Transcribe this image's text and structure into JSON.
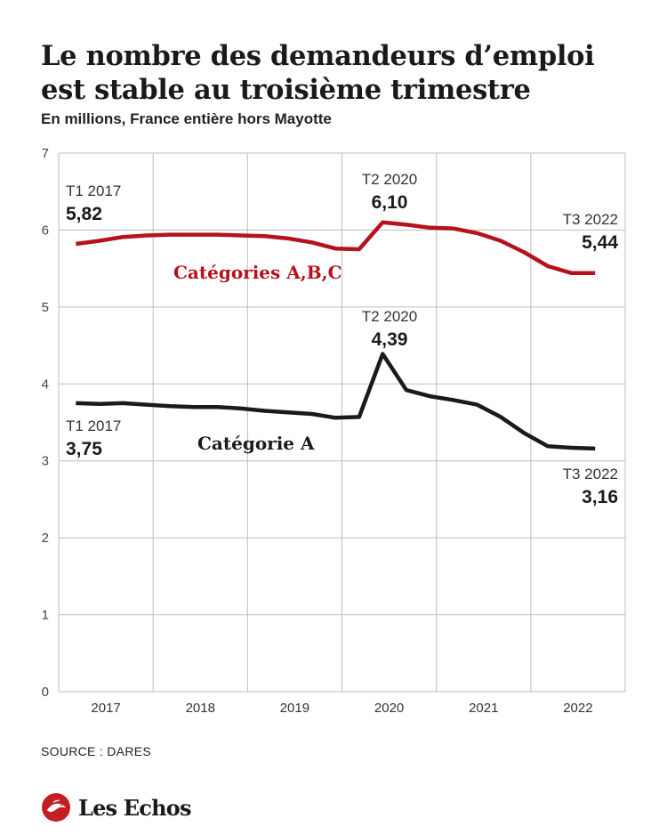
{
  "header": {
    "title_line1": "Le nombre des demandeurs d’emploi",
    "title_line2": "est stable au troisième trimestre",
    "subtitle": "En millions, France entière hors Mayotte"
  },
  "footer": {
    "source": "SOURCE : DARES",
    "brand": "Les Echos"
  },
  "colors": {
    "abc": "#b5121b",
    "a": "#1a1a1a",
    "grid": "#bdbdbd"
  },
  "chart_data": {
    "type": "line",
    "title": "Le nombre des demandeurs d’emploi est stable au troisième trimestre",
    "subtitle": "En millions, France entière hors Mayotte",
    "x_categories": [
      "2017",
      "2018",
      "2019",
      "2020",
      "2021",
      "2022"
    ],
    "x": [
      "T1 2017",
      "T2 2017",
      "T3 2017",
      "T4 2017",
      "T1 2018",
      "T2 2018",
      "T3 2018",
      "T4 2018",
      "T1 2019",
      "T2 2019",
      "T3 2019",
      "T4 2019",
      "T1 2020",
      "T2 2020",
      "T3 2020",
      "T4 2020",
      "T1 2021",
      "T2 2021",
      "T3 2021",
      "T4 2021",
      "T1 2022",
      "T2 2022",
      "T3 2022"
    ],
    "ylim": [
      0,
      7
    ],
    "yticks": [
      "0",
      "1",
      "2",
      "3",
      "4",
      "5",
      "6",
      "7"
    ],
    "grid": true,
    "series": [
      {
        "name": "Catégories A,B,C",
        "color": "#b5121b",
        "values": [
          5.82,
          5.86,
          5.91,
          5.93,
          5.94,
          5.94,
          5.94,
          5.93,
          5.92,
          5.89,
          5.84,
          5.76,
          5.75,
          6.1,
          6.07,
          6.03,
          6.02,
          5.96,
          5.86,
          5.71,
          5.53,
          5.44,
          5.44
        ]
      },
      {
        "name": "Catégorie A",
        "color": "#1a1a1a",
        "values": [
          3.75,
          3.74,
          3.75,
          3.73,
          3.71,
          3.7,
          3.7,
          3.68,
          3.65,
          3.63,
          3.61,
          3.56,
          3.57,
          4.39,
          3.92,
          3.84,
          3.79,
          3.73,
          3.57,
          3.36,
          3.19,
          3.17,
          3.16
        ]
      }
    ],
    "annotations": [
      {
        "series": 0,
        "index": 0,
        "label": "T1 2017",
        "value": "5,82"
      },
      {
        "series": 0,
        "index": 13,
        "label": "T2 2020",
        "value": "6,10"
      },
      {
        "series": 0,
        "index": 22,
        "label": "T3 2022",
        "value": "5,44"
      },
      {
        "series": 1,
        "index": 0,
        "label": "T1 2017",
        "value": "3,75"
      },
      {
        "series": 1,
        "index": 13,
        "label": "T2 2020",
        "value": "4,39"
      },
      {
        "series": 1,
        "index": 22,
        "label": "T3 2022",
        "value": "3,16"
      }
    ]
  }
}
